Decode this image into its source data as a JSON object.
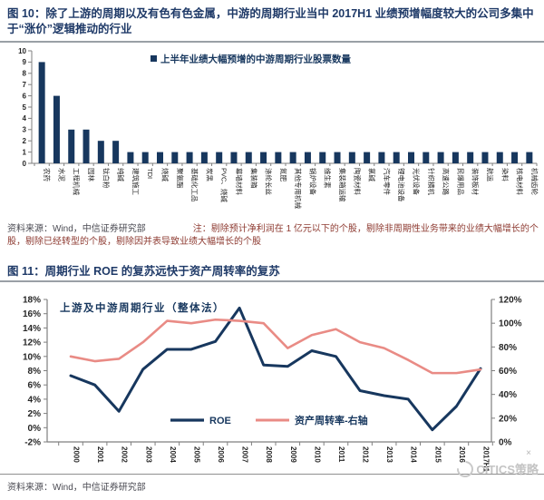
{
  "fig10": {
    "title": "图 10：除了上游的周期以及有色有色金属，中游的周期行业当中 2017H1 业绩预增幅度较大的公司多集中于“涨价”逻辑推动的行业",
    "source": "资料来源：Wind，中信证券研究部",
    "note": "注：剔除预计净利润在 1 亿元以下的个股，剔除非周期性业务带来的业绩大幅增长的个股，剔除已经转型的个股，剔除因并表导致业绩大幅增长的个股"
  },
  "fig11": {
    "title": "图 11：周期行业 ROE 的复苏远快于资产周转率的复苏",
    "source": "资料来源：Wind，中信证券研究部"
  },
  "watermark": "CITICS策略",
  "watermark_x": "×",
  "colors": {
    "navy": "#17375e",
    "salmon": "#e98b85",
    "axis": "#7f7f7f",
    "tick_text": "#262626",
    "title_navy": "#1f3a68",
    "note_red": "#8e3b32"
  },
  "chart_data": [
    {
      "type": "bar",
      "legend": "上半年业绩大幅预增的中游周期行业股票数量",
      "categories": [
        "农药",
        "水泥",
        "工程机械",
        "园林",
        "钛白粉",
        "纯碱",
        "建筑施工",
        "TDI",
        "烧碱",
        "聚氨酯",
        "基础化工品",
        "炭黑",
        "PVC、烧碱",
        "幕墙材料",
        "集装箱",
        "涤纶长丝",
        "氮肥",
        "其他专用机械",
        "锅炉设备",
        "维生素",
        "集装箱运输",
        "陶瓷材料",
        "氯碱",
        "汽车零件",
        "锂电池设备",
        "光伏设备",
        "针织横机",
        "高速公路",
        "民爆用品",
        "装饰板材",
        "航运",
        "染料",
        "核电材料",
        "机械齿轮"
      ],
      "values": [
        9,
        6,
        3,
        3,
        2,
        2,
        1,
        1,
        1,
        1,
        1,
        1,
        1,
        1,
        1,
        1,
        1,
        1,
        1,
        1,
        1,
        1,
        1,
        1,
        1,
        1,
        1,
        1,
        1,
        1,
        1,
        1,
        1,
        1
      ],
      "ylim": [
        0,
        10
      ],
      "ytick_step": 1,
      "grid": false,
      "legend_position": "top-center"
    },
    {
      "type": "line",
      "annotation": "上游及中游周期行业（整体法）",
      "x": [
        "2000",
        "2001",
        "2002",
        "2003",
        "2004",
        "2005",
        "2006",
        "2007",
        "2008",
        "2009",
        "2010",
        "2011",
        "2012",
        "2013",
        "2014",
        "2015",
        "2016",
        "2017H1"
      ],
      "series": [
        {
          "name": "ROE",
          "axis": "left",
          "values": [
            7.3,
            6.0,
            2.3,
            8.2,
            11.0,
            11.0,
            12.1,
            16.8,
            8.8,
            8.6,
            10.8,
            10.0,
            5.2,
            4.5,
            4.0,
            -0.3,
            3.0,
            8.3
          ]
        },
        {
          "name": "资产周转率-右轴",
          "axis": "right",
          "values": [
            72,
            68,
            70,
            84,
            102,
            100,
            103,
            102,
            100,
            79,
            90,
            95,
            84,
            79,
            69,
            58,
            58,
            61
          ]
        }
      ],
      "left_axis": {
        "min": -2,
        "max": 18,
        "step": 2,
        "format": "percent"
      },
      "right_axis": {
        "min": 0,
        "max": 120,
        "step": 20,
        "format": "percent"
      },
      "grid": false,
      "legend_position": "bottom-center"
    }
  ]
}
